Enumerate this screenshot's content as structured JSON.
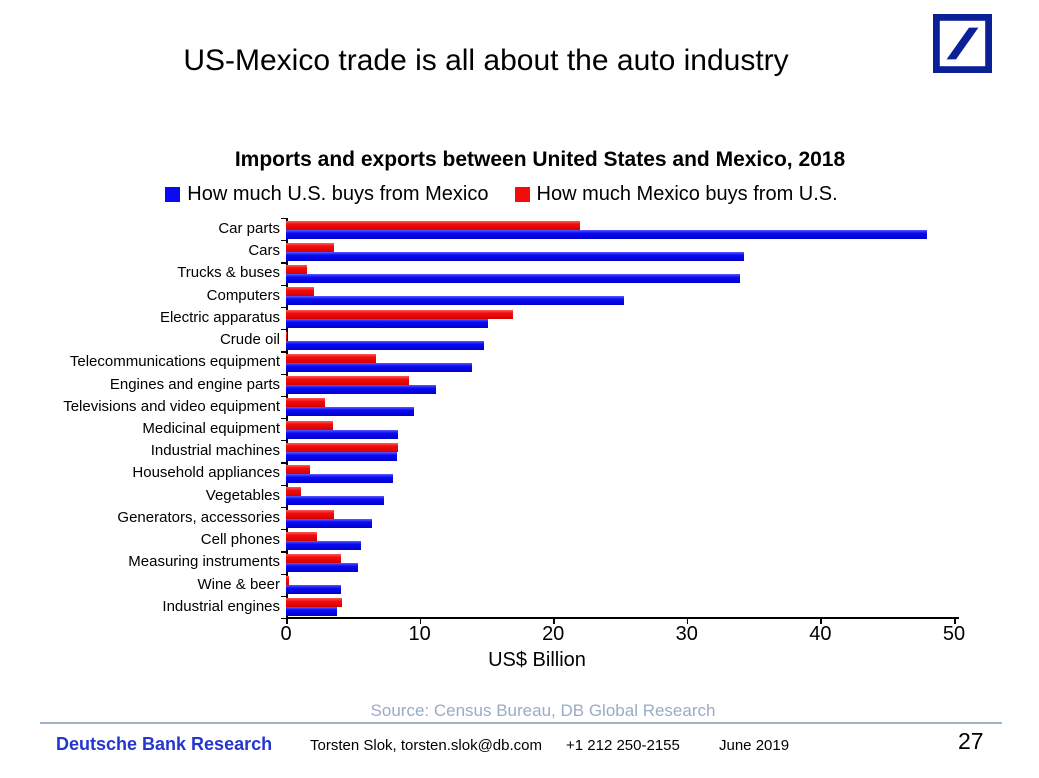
{
  "page": {
    "title": "US-Mexico trade is all about the auto industry"
  },
  "logo": {
    "name": "deutsche-bank-logo",
    "color": "#0b1f97"
  },
  "chart": {
    "x_axis_title": "US$ Billion"
  },
  "chart_data": {
    "type": "bar",
    "orientation": "horizontal",
    "title": "Imports and exports between United States and Mexico, 2018",
    "xlabel": "US$ Billion",
    "xlim": [
      0,
      50
    ],
    "x_ticks": [
      0,
      10,
      20,
      30,
      40,
      50
    ],
    "grid": false,
    "legend_position": "top",
    "bar_order_top_to_bottom_within_group": [
      "How much Mexico buys from U.S.",
      "How much U.S. buys from Mexico"
    ],
    "categories": [
      "Car parts",
      "Cars",
      "Trucks & buses",
      "Computers",
      "Electric apparatus",
      "Crude oil",
      "Telecommunications equipment",
      "Engines and engine parts",
      "Televisions and video equipment",
      "Medicinal equipment",
      "Industrial machines",
      "Household appliances",
      "Vegetables",
      "Generators, accessories",
      "Cell phones",
      "Measuring instruments",
      "Wine & beer",
      "Industrial engines"
    ],
    "series": [
      {
        "name": "How much U.S. buys from Mexico",
        "color": "#0b0bf2",
        "values": [
          48.0,
          34.3,
          34.0,
          25.3,
          15.1,
          14.8,
          13.9,
          11.2,
          9.6,
          8.4,
          8.3,
          8.0,
          7.3,
          6.4,
          5.6,
          5.4,
          4.1,
          3.8
        ]
      },
      {
        "name": "How much Mexico buys from U.S.",
        "color": "#f20d0d",
        "values": [
          22.0,
          3.6,
          1.6,
          2.1,
          17.0,
          0.1,
          6.7,
          9.2,
          2.9,
          3.5,
          8.4,
          1.8,
          1.1,
          3.6,
          2.3,
          4.1,
          0.2,
          4.2
        ]
      }
    ]
  },
  "source": "Source: Census Bureau, DB Global Research",
  "footer": {
    "brand": "Deutsche Bank Research",
    "contact": "Torsten Slok, torsten.slok@db.com",
    "phone": "+1 212 250-2155",
    "date": "June 2019",
    "page_number": "27"
  }
}
